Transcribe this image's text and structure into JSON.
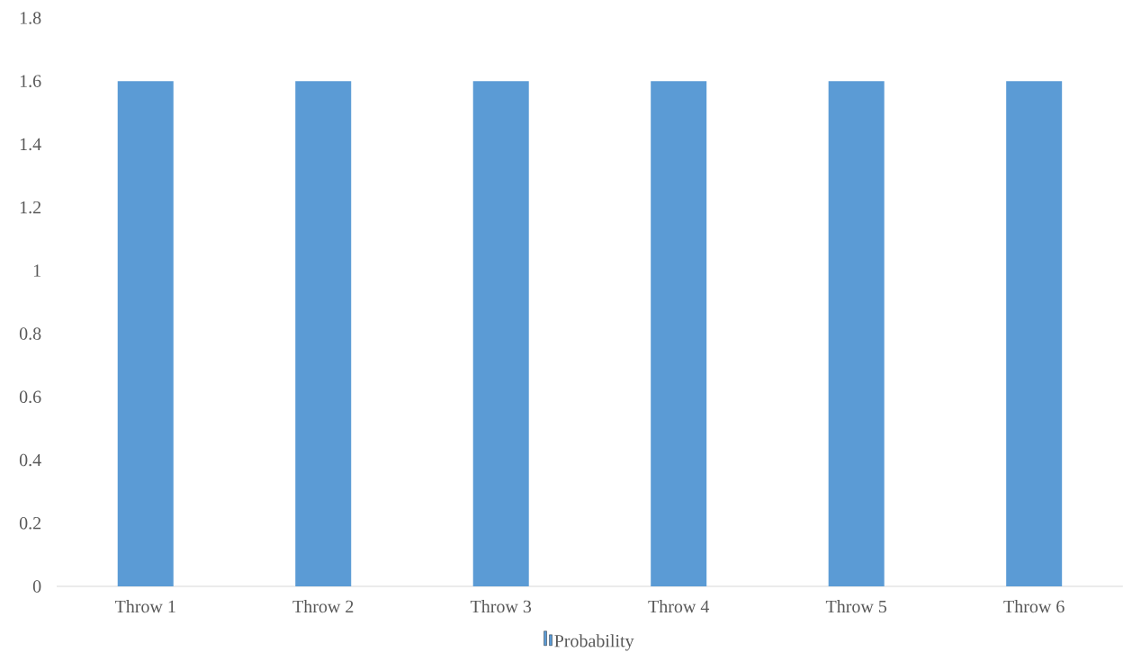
{
  "chart_data": {
    "type": "bar",
    "categories": [
      "Throw 1",
      "Throw 2",
      "Throw 3",
      "Throw 4",
      "Throw 5",
      "Throw 6"
    ],
    "series": [
      {
        "name": "Probability",
        "color": "#5b9bd5",
        "values": [
          1.6,
          1.6,
          1.6,
          1.6,
          1.6,
          1.6
        ]
      }
    ],
    "ylim": [
      0,
      1.8
    ],
    "yticks": [
      0,
      0.2,
      0.4,
      0.6,
      0.8,
      1,
      1.2,
      1.4,
      1.6,
      1.8
    ],
    "grid": false,
    "legend": "bottom"
  }
}
